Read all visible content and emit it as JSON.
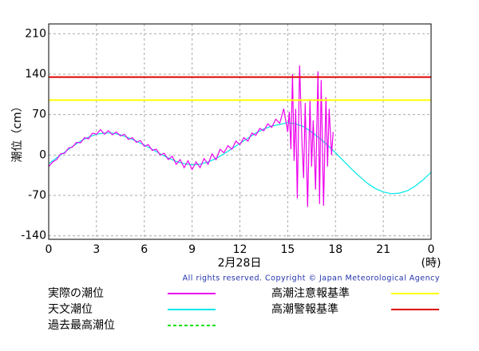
{
  "chart_data": {
    "type": "line",
    "ylabel": "潮位（cm）",
    "xlabel": "2月28日",
    "xunit": "(時)",
    "credit": "All rights reserved. Copyright © Japan Meteorological Agency",
    "xlim": [
      0,
      24
    ],
    "xticks": [
      0,
      3,
      6,
      9,
      12,
      15,
      18,
      21,
      {
        "value": 24,
        "label": "0"
      }
    ],
    "ylim": [
      -146,
      227
    ],
    "yticks": [
      210,
      140,
      70,
      0,
      -70,
      -140
    ],
    "grid": true,
    "series": [
      {
        "name": "実際の潮位",
        "color": "#ee00ee",
        "style": "solid",
        "x": [
          0,
          0.25,
          0.5,
          0.75,
          1,
          1.25,
          1.5,
          1.75,
          2,
          2.25,
          2.5,
          2.75,
          3,
          3.25,
          3.5,
          3.75,
          4,
          4.25,
          4.5,
          4.75,
          5,
          5.25,
          5.5,
          5.75,
          6,
          6.25,
          6.5,
          6.75,
          7,
          7.25,
          7.5,
          7.75,
          8,
          8.25,
          8.5,
          8.75,
          9,
          9.25,
          9.5,
          9.75,
          10,
          10.25,
          10.5,
          10.75,
          11,
          11.25,
          11.5,
          11.75,
          12,
          12.25,
          12.5,
          12.75,
          13,
          13.25,
          13.5,
          13.75,
          14,
          14.25,
          14.5,
          14.75,
          15,
          15.1,
          15.2,
          15.3,
          15.4,
          15.5,
          15.6,
          15.75,
          15.9,
          16,
          16.1,
          16.25,
          16.4,
          16.5,
          16.6,
          16.75,
          16.9,
          17,
          17.1,
          17.25,
          17.4,
          17.5,
          17.6,
          17.75,
          17.85
        ],
        "values": [
          -20,
          -12,
          -8,
          2,
          3,
          12,
          14,
          22,
          21,
          30,
          28,
          38,
          36,
          44,
          36,
          42,
          35,
          40,
          33,
          36,
          27,
          30,
          22,
          25,
          15,
          18,
          8,
          10,
          0,
          3,
          -8,
          -2,
          -16,
          -8,
          -22,
          -10,
          -25,
          -12,
          -22,
          -6,
          -16,
          2,
          -8,
          10,
          4,
          16,
          10,
          24,
          18,
          30,
          24,
          38,
          34,
          46,
          42,
          54,
          48,
          62,
          55,
          80,
          40,
          75,
          10,
          140,
          -10,
          80,
          -75,
          155,
          20,
          -40,
          90,
          -90,
          95,
          -20,
          60,
          -60,
          145,
          -85,
          130,
          -88,
          100,
          -20,
          80,
          0,
          40
        ]
      },
      {
        "name": "天文潮位",
        "color": "#00e8e8",
        "style": "solid",
        "x": [
          0,
          0.5,
          1,
          1.5,
          2,
          2.5,
          3,
          3.5,
          4,
          4.5,
          5,
          5.5,
          6,
          6.5,
          7,
          7.5,
          8,
          8.5,
          9,
          9.5,
          10,
          10.5,
          11,
          11.5,
          12,
          12.5,
          13,
          13.5,
          14,
          14.5,
          15,
          15.5,
          16,
          16.5,
          17,
          17.5,
          18,
          18.5,
          19,
          19.5,
          20,
          20.5,
          21,
          21.5,
          22,
          22.5,
          23,
          23.5,
          24
        ],
        "values": [
          -15,
          -5,
          5,
          15,
          24,
          31,
          36,
          38,
          38,
          35,
          30,
          24,
          17,
          10,
          2,
          -5,
          -11,
          -15,
          -17,
          -16,
          -12,
          -6,
          2,
          11,
          20,
          29,
          38,
          45,
          50,
          53,
          56,
          54,
          49,
          40,
          29,
          17,
          4,
          -10,
          -24,
          -37,
          -49,
          -58,
          -64,
          -67,
          -66,
          -62,
          -54,
          -43,
          -30
        ]
      },
      {
        "name": "過去最高潮位",
        "color": "#00e000",
        "style": "dashed",
        "x": [],
        "values": []
      }
    ],
    "hlines": [
      {
        "name": "高潮注意報基準",
        "color": "#ffff00",
        "value": 95
      },
      {
        "name": "高潮警報基準",
        "color": "#e00000",
        "value": 135
      }
    ]
  }
}
